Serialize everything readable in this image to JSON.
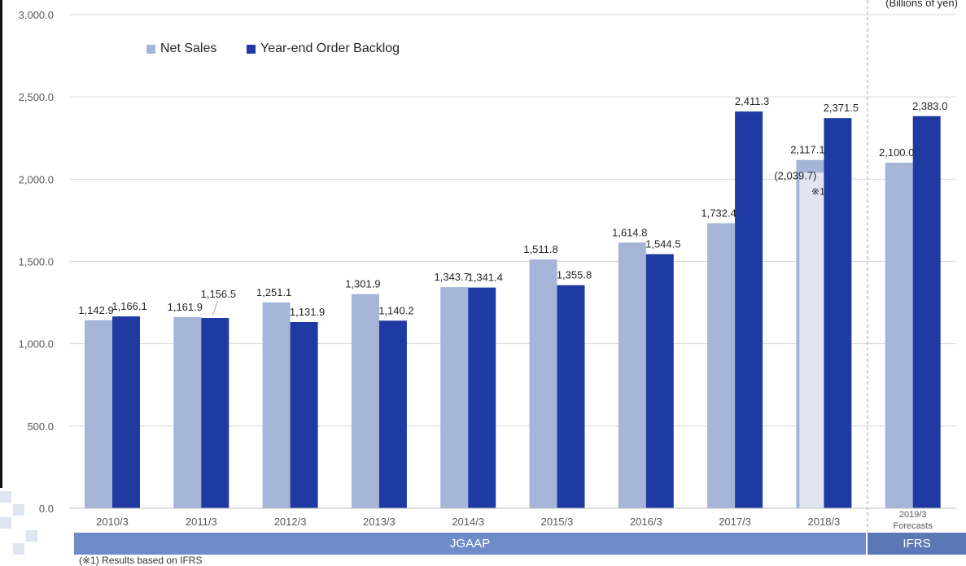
{
  "unit_label": "(Billions of yen)",
  "footnote": "(※1) Results based on IFRS",
  "bands": {
    "jgaap": "JGAAP",
    "ifrs": "IFRS"
  },
  "colors": {
    "net_sales": "#a5b5d8",
    "backlog": "#1f3ba3",
    "ifrs_overlay": "#dfe6f2",
    "grid": "#d9d9d9"
  },
  "chart_data": {
    "type": "bar",
    "categories": [
      "2010/3",
      "2011/3",
      "2012/3",
      "2013/3",
      "2014/3",
      "2015/3",
      "2016/3",
      "2017/3",
      "2018/3",
      "2019/3"
    ],
    "category_sublabels": [
      "",
      "",
      "",
      "",
      "",
      "",
      "",
      "",
      "",
      "Forecasts"
    ],
    "ylim": [
      0,
      3000
    ],
    "yticks": [
      0,
      500,
      1000,
      1500,
      2000,
      2500,
      3000
    ],
    "ytick_labels": [
      "0.0",
      "500.0",
      "1,000.0",
      "1,500.0",
      "2,000.0",
      "2,500.0",
      "3,000.0"
    ],
    "legend_position": "top-left",
    "series": [
      {
        "name": "Net Sales",
        "values": [
          1142.9,
          1161.9,
          1251.1,
          1301.9,
          1343.7,
          1511.8,
          1614.8,
          1732.4,
          2117.1,
          2100.0
        ],
        "labels": [
          "1,142.9",
          "1,161.9",
          "1,251.1",
          "1,301.9",
          "1,343.7",
          "1,511.8",
          "1,614.8",
          "1,732.4",
          "2,117.1",
          "2,100.0"
        ]
      },
      {
        "name": "Year-end Order Backlog",
        "values": [
          1166.1,
          1156.5,
          1131.9,
          1140.2,
          1341.4,
          1355.8,
          1544.5,
          2411.3,
          2371.5,
          2383.0
        ],
        "labels": [
          "1,166.1",
          "1,156.5",
          "1,131.9",
          "1,140.2",
          "1,341.4",
          "1,355.8",
          "1,544.5",
          "2,411.3",
          "2,371.5",
          "2,383.0"
        ]
      }
    ],
    "annotations": {
      "ifrs_2018_value": 2039.7,
      "ifrs_2018_label": "(2,039.7)",
      "ifrs_2018_mark": "※1"
    }
  }
}
